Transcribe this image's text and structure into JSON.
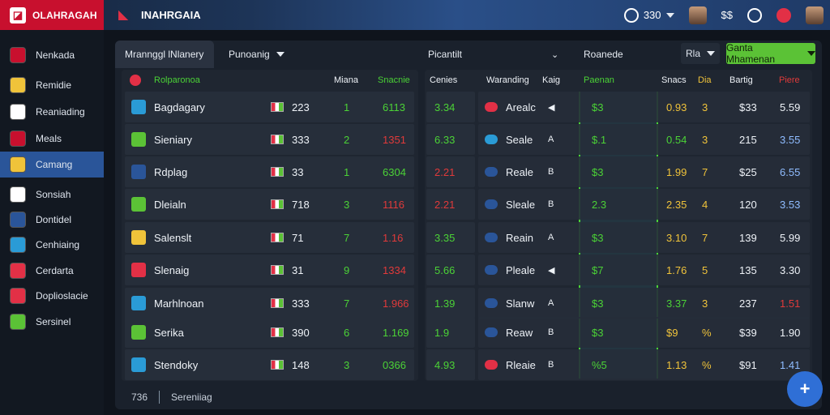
{
  "brand": {
    "name": "OLAHRAGAH"
  },
  "app": {
    "title": "INAHRGAIA"
  },
  "topbar": {
    "count": "330"
  },
  "sidebar": {
    "items": [
      {
        "label": "Nenkada",
        "color": "#c8102e",
        "icon": "shield-icon"
      },
      {
        "label": "Remidie",
        "color": "#f0c33a",
        "icon": "gear-icon"
      },
      {
        "label": "Reaniading",
        "color": "#ffffff",
        "icon": "ball-icon"
      },
      {
        "label": "Meals",
        "color": "#c8102e",
        "icon": "flag-icon"
      },
      {
        "label": "Camang",
        "color": "#f0c33a",
        "icon": "crest-icon",
        "active": true
      },
      {
        "label": "Sonsiah",
        "color": "#ffffff",
        "icon": "shoe-icon"
      },
      {
        "label": "Dontidel",
        "color": "#2a5599",
        "icon": "crest-icon"
      },
      {
        "label": "Cenhiaing",
        "color": "#2a9bd6",
        "icon": "ring-icon"
      },
      {
        "label": "Cerdarta",
        "color": "#e23046",
        "icon": "crest-icon"
      },
      {
        "label": "Doplioslacie",
        "color": "#e23046",
        "icon": "logo-icon"
      },
      {
        "label": "Sersinel",
        "color": "#5bc236",
        "icon": "crest-icon"
      }
    ]
  },
  "tabs": {
    "t1": "Mrannggl lNlanery",
    "t2": "Punoanig",
    "t3": "Picantilt",
    "t4": "Roanede",
    "btn_small": "Rla",
    "btn_green": "Ganta Mhamenan"
  },
  "left_panel": {
    "headers": {
      "name": "Rolparonoa",
      "c1": "Miana",
      "c2": "Snacnie",
      "c3": "Cenies"
    },
    "rows": [
      {
        "team": "Bagdagary",
        "num": "223",
        "pos": "1",
        "score": "6113",
        "score_color": "green",
        "odds": "3.34",
        "odds_color": "green",
        "icon_color": "#2a9bd6"
      },
      {
        "team": "Sieniary",
        "num": "333",
        "pos": "2",
        "score": "1351",
        "score_color": "red",
        "odds": "6.33",
        "odds_color": "green",
        "icon_color": "#5bc236"
      },
      {
        "team": "Rdplag",
        "num": "33",
        "pos": "1",
        "score": "6304",
        "score_color": "green",
        "odds": "2.21",
        "odds_color": "red",
        "icon_color": "#2a5599"
      },
      {
        "team": "Dleialn",
        "num": "718",
        "pos": "3",
        "score": "1116",
        "score_color": "red",
        "odds": "2.21",
        "odds_color": "red",
        "icon_color": "#5bc236"
      },
      {
        "team": "Salenslt",
        "num": "71",
        "pos": "7",
        "score": "1.16",
        "score_color": "red",
        "odds": "3.35",
        "odds_color": "green",
        "icon_color": "#f0c33a"
      },
      {
        "team": "Slenaig",
        "num": "31",
        "pos": "9",
        "score": "1334",
        "score_color": "red",
        "odds": "5.66",
        "odds_color": "green",
        "icon_color": "#e23046"
      },
      {
        "team": "Marhlnoan",
        "num": "333",
        "pos": "7",
        "score": "1.966",
        "score_color": "red",
        "odds": "1.39",
        "odds_color": "green",
        "icon_color": "#2a9bd6"
      },
      {
        "team": "Serika",
        "num": "390",
        "pos": "6",
        "score": "1.169",
        "score_color": "green",
        "odds": "1.9",
        "odds_color": "green",
        "icon_color": "#5bc236"
      },
      {
        "team": "Stendoky",
        "num": "148",
        "pos": "3",
        "score": "0366",
        "score_color": "green",
        "odds": "4.93",
        "odds_color": "green",
        "icon_color": "#2a9bd6"
      }
    ]
  },
  "right_panel": {
    "headers": {
      "name": "Waranding",
      "c1": "Kaig",
      "c2": "Paenan",
      "c3": "Snacs",
      "c4": "Dia",
      "c5": "Bartig",
      "c6": "Piere"
    },
    "rows": [
      {
        "name": "Arealc",
        "ico": "#e23046",
        "mark": "◀",
        "p": "$3",
        "s": "0.93",
        "s_color": "yellow",
        "d": "3",
        "b": "$33",
        "v": "5.59",
        "v_color": "white"
      },
      {
        "name": "Seale",
        "ico": "#2a9bd6",
        "mark": "A",
        "p": "$.1",
        "s": "0.54",
        "s_color": "green",
        "d": "3",
        "b": "215",
        "v": "3.55",
        "v_color": "blue"
      },
      {
        "name": "Reale",
        "ico": "#2a5599",
        "mark": "B",
        "p": "$3",
        "s": "1.99",
        "s_color": "yellow",
        "d": "7",
        "b": "$25",
        "v": "6.55",
        "v_color": "blue"
      },
      {
        "name": "Sleale",
        "ico": "#2a5599",
        "mark": "B",
        "p": "2.3",
        "s": "2.35",
        "s_color": "yellow",
        "d": "4",
        "b": "120",
        "v": "3.53",
        "v_color": "blue"
      },
      {
        "name": "Reain",
        "ico": "#2a5599",
        "mark": "A",
        "p": "$3",
        "s": "3.10",
        "s_color": "yellow",
        "d": "7",
        "b": "139",
        "v": "5.99",
        "v_color": "white"
      },
      {
        "name": "Pleale",
        "ico": "#2a5599",
        "mark": "◀",
        "p": "$7",
        "s": "1.76",
        "s_color": "yellow",
        "d": "5",
        "b": "135",
        "v": "3.30",
        "v_color": "white"
      },
      {
        "name": "Slanw",
        "ico": "#2a5599",
        "mark": "A",
        "p": "$3",
        "s": "3.37",
        "s_color": "green",
        "d": "3",
        "b": "237",
        "v": "1.51",
        "v_color": "red"
      },
      {
        "name": "Reaw",
        "ico": "#2a5599",
        "mark": "B",
        "p": "$3",
        "s": "$9",
        "s_color": "yellow",
        "d": "%",
        "b": "$39",
        "v": "1.90",
        "v_color": "white"
      },
      {
        "name": "Rleaie",
        "ico": "#e23046",
        "mark": "B",
        "p": "%5",
        "s": "1.13",
        "s_color": "yellow",
        "d": "%",
        "b": "$91",
        "v": "1.41",
        "v_color": "blue"
      }
    ]
  },
  "footer": {
    "count": "736",
    "label": "Sereniiag"
  }
}
